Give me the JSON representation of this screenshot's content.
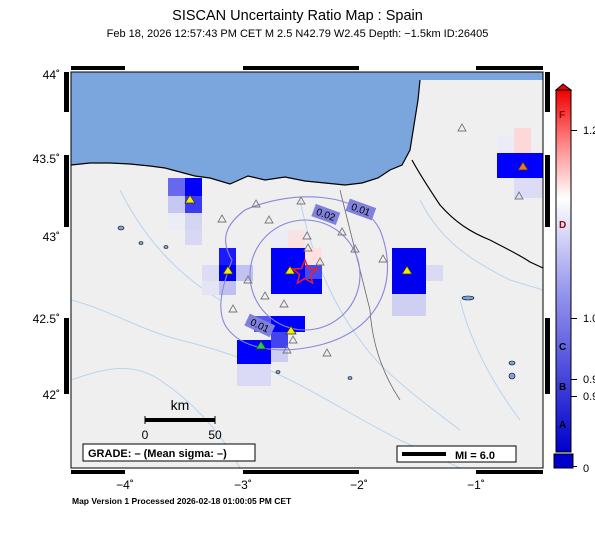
{
  "header": {
    "title": "SISCAN Uncertainty Ratio Map : Spain",
    "subtitle": "Feb 18, 2026 12:57:43 PM CET   M 2.5   N42.79 W2.45   Depth: −1.5km   ID:26405"
  },
  "axes": {
    "lat_ticks": [
      "44˚",
      "43.5˚",
      "43˚",
      "42.5˚",
      "42˚"
    ],
    "lon_ticks": [
      "−4˚",
      "−3˚",
      "−2˚",
      "−1˚"
    ]
  },
  "contours": [
    "0.01",
    "0.02",
    "0.01"
  ],
  "scalebar": {
    "unit": "km",
    "start": "0",
    "end": "50"
  },
  "grade_box": "GRADE: – (Mean sigma: –)",
  "mi_box": "MI = 6.0",
  "colorbar": {
    "letters": [
      "F",
      "D",
      "C",
      "B",
      "A"
    ],
    "values": [
      "1.2",
      "1.0",
      "0.9",
      "0.9",
      "0"
    ],
    "colors": {
      "high": "#ff0000",
      "mid": "#ffffff",
      "low": "#0000ff"
    }
  },
  "footer": "Map Version 1 Processed 2026-02-18 01:00:05 PM CET",
  "colors": {
    "sea": "#7aa5dd",
    "land": "#efefef",
    "epicenter": "#ee2222"
  }
}
